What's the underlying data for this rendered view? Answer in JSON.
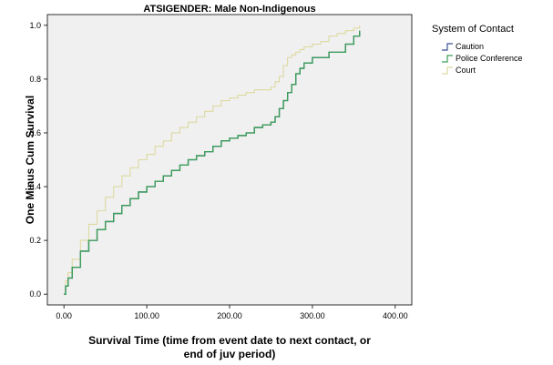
{
  "chart_data": {
    "type": "line",
    "title": "ATSIGENDER: Male Non-Indigenous",
    "xlabel_lines": [
      "Survival Time (time from event date to next contact, or",
      "end of juv period)"
    ],
    "ylabel": "One Minus Cum Survival",
    "xlim": [
      -20,
      420
    ],
    "ylim": [
      -0.04,
      1.04
    ],
    "x_ticks": [
      0,
      100,
      200,
      300,
      400
    ],
    "x_tick_labels": [
      "0.00",
      "100.00",
      "200.00",
      "300.00",
      "400.00"
    ],
    "y_ticks": [
      0,
      0.2,
      0.4,
      0.6,
      0.8,
      1.0
    ],
    "y_tick_labels": [
      "0.0",
      "0.2",
      "0.4",
      "0.6",
      "0.8",
      "1.0"
    ],
    "grid": false,
    "legend_title": "System of Contact",
    "legend_position": "right",
    "plot_background": "#f0f0f0",
    "series": [
      {
        "name": "Caution",
        "color": "#3a4f96",
        "x": [
          0,
          2,
          5,
          10,
          20,
          30,
          40,
          50,
          60,
          70,
          80,
          90,
          100,
          110,
          120,
          130,
          140,
          150,
          160,
          170,
          180,
          190,
          200,
          210,
          220,
          230,
          240,
          250,
          255,
          260,
          265,
          270,
          275,
          280,
          285,
          290,
          300,
          310,
          320,
          330,
          340,
          350,
          357
        ],
        "y": [
          0,
          0.03,
          0.06,
          0.1,
          0.16,
          0.2,
          0.24,
          0.27,
          0.3,
          0.33,
          0.355,
          0.38,
          0.4,
          0.42,
          0.44,
          0.46,
          0.48,
          0.5,
          0.515,
          0.53,
          0.55,
          0.57,
          0.58,
          0.59,
          0.6,
          0.62,
          0.63,
          0.64,
          0.66,
          0.69,
          0.72,
          0.75,
          0.78,
          0.82,
          0.84,
          0.86,
          0.88,
          0.88,
          0.9,
          0.9,
          0.93,
          0.96,
          0.98
        ]
      },
      {
        "name": "Police Conference",
        "color": "#3aa055",
        "x": [
          0,
          2,
          5,
          10,
          20,
          30,
          40,
          50,
          60,
          70,
          80,
          90,
          100,
          110,
          120,
          130,
          140,
          150,
          160,
          170,
          180,
          190,
          200,
          210,
          220,
          230,
          240,
          250,
          255,
          260,
          265,
          270,
          275,
          280,
          285,
          290,
          300,
          310,
          320,
          330,
          340,
          350,
          357
        ],
        "y": [
          0,
          0.03,
          0.06,
          0.1,
          0.16,
          0.2,
          0.24,
          0.27,
          0.3,
          0.33,
          0.355,
          0.38,
          0.4,
          0.42,
          0.44,
          0.46,
          0.48,
          0.5,
          0.515,
          0.53,
          0.55,
          0.57,
          0.58,
          0.59,
          0.6,
          0.62,
          0.63,
          0.64,
          0.66,
          0.69,
          0.72,
          0.75,
          0.78,
          0.82,
          0.84,
          0.86,
          0.88,
          0.88,
          0.9,
          0.9,
          0.93,
          0.96,
          0.98
        ]
      },
      {
        "name": "Court",
        "color": "#ddd9a0",
        "x": [
          0,
          2,
          5,
          10,
          20,
          30,
          40,
          50,
          60,
          70,
          80,
          90,
          100,
          110,
          120,
          130,
          140,
          150,
          160,
          170,
          180,
          190,
          200,
          210,
          220,
          230,
          240,
          250,
          255,
          260,
          265,
          270,
          275,
          280,
          285,
          290,
          300,
          310,
          320,
          330,
          340,
          350,
          357
        ],
        "y": [
          0,
          0.05,
          0.08,
          0.13,
          0.2,
          0.26,
          0.31,
          0.36,
          0.4,
          0.44,
          0.47,
          0.5,
          0.52,
          0.55,
          0.57,
          0.6,
          0.62,
          0.64,
          0.66,
          0.68,
          0.7,
          0.72,
          0.73,
          0.74,
          0.75,
          0.76,
          0.76,
          0.77,
          0.79,
          0.81,
          0.85,
          0.88,
          0.89,
          0.9,
          0.91,
          0.92,
          0.93,
          0.94,
          0.96,
          0.97,
          0.98,
          0.99,
          1.0
        ]
      }
    ]
  }
}
